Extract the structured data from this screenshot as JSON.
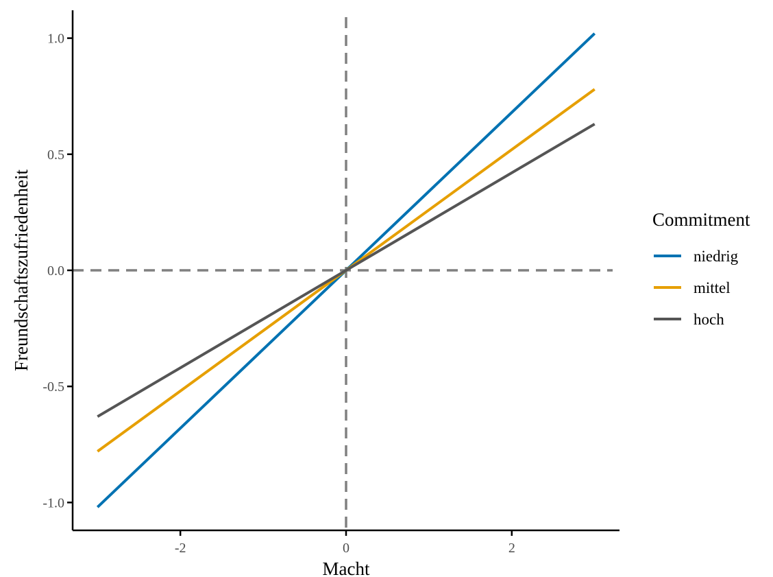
{
  "chart_data": {
    "type": "line",
    "title": "",
    "xlabel": "Macht",
    "ylabel": "Freundschaftszufriedenheit",
    "xlim": [
      -3.3,
      3.3
    ],
    "ylim": [
      -1.12,
      1.12
    ],
    "x_ticks": [
      -2,
      0,
      2
    ],
    "x_tick_labels": [
      "-2",
      "0",
      "2"
    ],
    "y_ticks": [
      -1.0,
      -0.5,
      0.0,
      0.5,
      1.0
    ],
    "y_tick_labels": [
      "-1.0",
      "-0.5",
      "0.0",
      "0.5",
      "1.0"
    ],
    "grid": false,
    "reference_lines": [
      {
        "orientation": "vertical",
        "value": 0,
        "style": "dashed",
        "color": "#808080"
      },
      {
        "orientation": "horizontal",
        "value": 0,
        "style": "dashed",
        "color": "#808080"
      }
    ],
    "legend": {
      "title": "Commitment",
      "position": "right"
    },
    "series": [
      {
        "name": "niedrig",
        "color": "#0072B2",
        "x": [
          -3,
          3
        ],
        "y": [
          -1.02,
          1.02
        ]
      },
      {
        "name": "mittel",
        "color": "#E69F00",
        "x": [
          -3,
          3
        ],
        "y": [
          -0.78,
          0.78
        ]
      },
      {
        "name": "hoch",
        "color": "#555555",
        "x": [
          -3,
          3
        ],
        "y": [
          -0.63,
          0.63
        ]
      }
    ]
  }
}
